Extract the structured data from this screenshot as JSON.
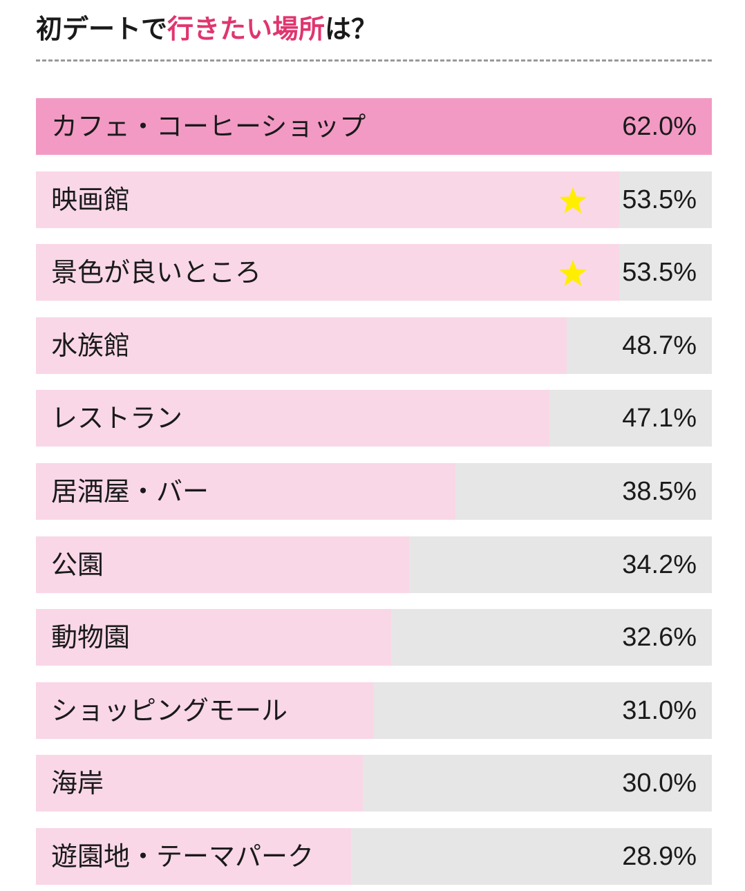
{
  "title": {
    "prefix": "初デートで",
    "accent": "行きたい場所",
    "suffix": "は？"
  },
  "colors": {
    "top_bar": "#f29ac4",
    "bar": "#f9d7e7",
    "track": "#e6e6e6",
    "accent_text": "#e0356f",
    "star": "#ffee00"
  },
  "chart_data": {
    "type": "bar",
    "orientation": "horizontal",
    "unit": "%",
    "xlim": [
      0,
      62.0
    ],
    "categories": [
      "カフェ・コーヒーショップ",
      "映画館",
      "景色が良いところ",
      "水族館",
      "レストラン",
      "居酒屋・バー",
      "公園",
      "動物園",
      "ショッピングモール",
      "海岸",
      "遊園地・テーマパーク"
    ],
    "values": [
      62.0,
      53.5,
      53.5,
      48.7,
      47.1,
      38.5,
      34.2,
      32.6,
      31.0,
      30.0,
      28.9
    ],
    "value_labels": [
      "62.0%",
      "53.5%",
      "53.5%",
      "48.7%",
      "47.1%",
      "38.5%",
      "34.2%",
      "32.6%",
      "31.0%",
      "30.0%",
      "28.9%"
    ],
    "starred": [
      1,
      2
    ],
    "star_icon": "star-icon"
  }
}
